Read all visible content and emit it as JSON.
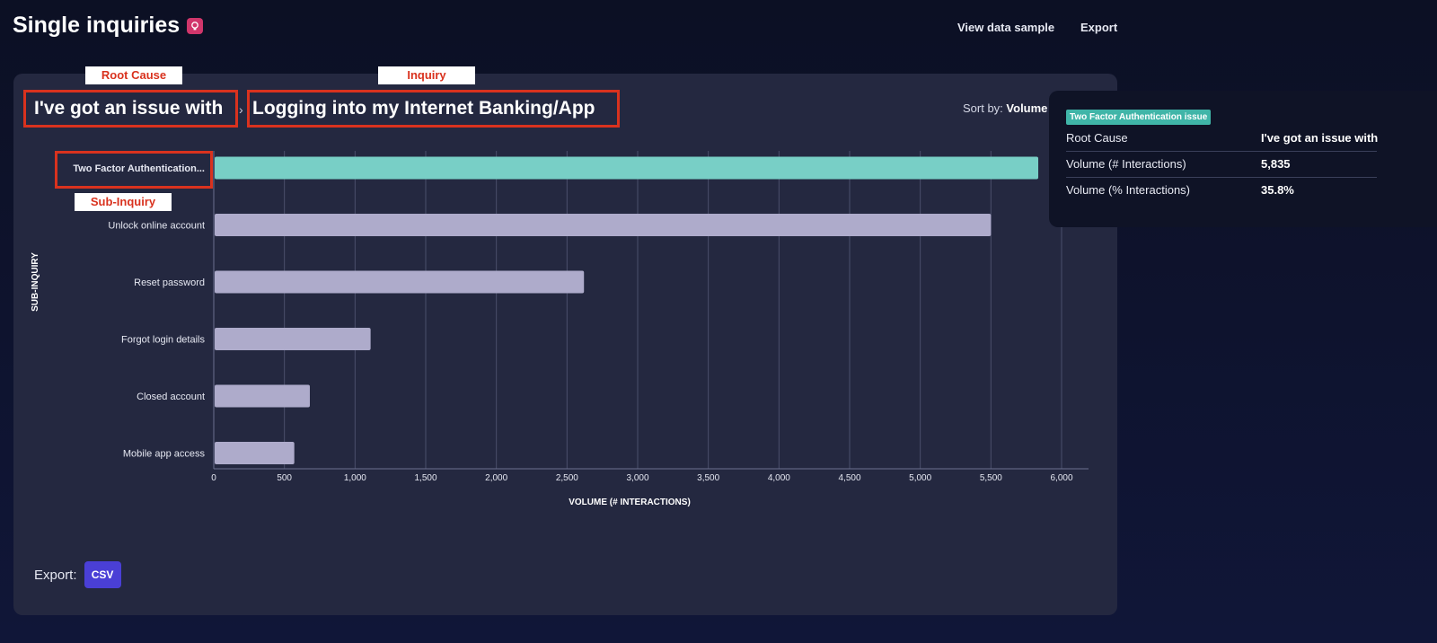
{
  "header": {
    "title": "Single inquiries",
    "icon": "lightbulb-icon",
    "links": [
      "View data sample",
      "Export"
    ]
  },
  "breadcrumb": {
    "root_cause": "I've got an issue with",
    "separator": "›",
    "inquiry": "Logging into my Internet Banking/App"
  },
  "annotations": {
    "root_cause": "Root Cause",
    "inquiry": "Inquiry",
    "sub_inquiry": "Sub-Inquiry"
  },
  "sort": {
    "label": "Sort by:",
    "value": "Volume"
  },
  "tooltip": {
    "tag": "Two Factor Authentication issue",
    "rows": [
      {
        "key": "Root Cause",
        "value": "I've got an issue with"
      },
      {
        "key": "Volume (# Interactions)",
        "value": "5,835"
      },
      {
        "key": "Volume (% Interactions)",
        "value": "35.8%"
      }
    ]
  },
  "export": {
    "label": "Export:",
    "button": "CSV"
  },
  "colors": {
    "highlight_bar": "#78cfc6",
    "bar": "#aeabcb",
    "annotation": "#d9321e",
    "csv_button": "#4a3fd6"
  },
  "chart_data": {
    "type": "bar",
    "orientation": "horizontal",
    "categories": [
      "Two Factor Authentication...",
      "Unlock online account",
      "Reset password",
      "Forgot login details",
      "Closed account",
      "Mobile app access"
    ],
    "values": [
      5835,
      5500,
      2620,
      1110,
      680,
      570
    ],
    "highlighted_index": 0,
    "xlabel": "VOLUME (# INTERACTIONS)",
    "ylabel": "SUB-INQUIRY",
    "xlim": [
      0,
      6000
    ],
    "xticks": [
      "0",
      "500",
      "1,000",
      "1,500",
      "2,000",
      "2,500",
      "3,000",
      "3,500",
      "4,000",
      "4,500",
      "5,000",
      "5,500",
      "6,000"
    ],
    "grid": true
  }
}
